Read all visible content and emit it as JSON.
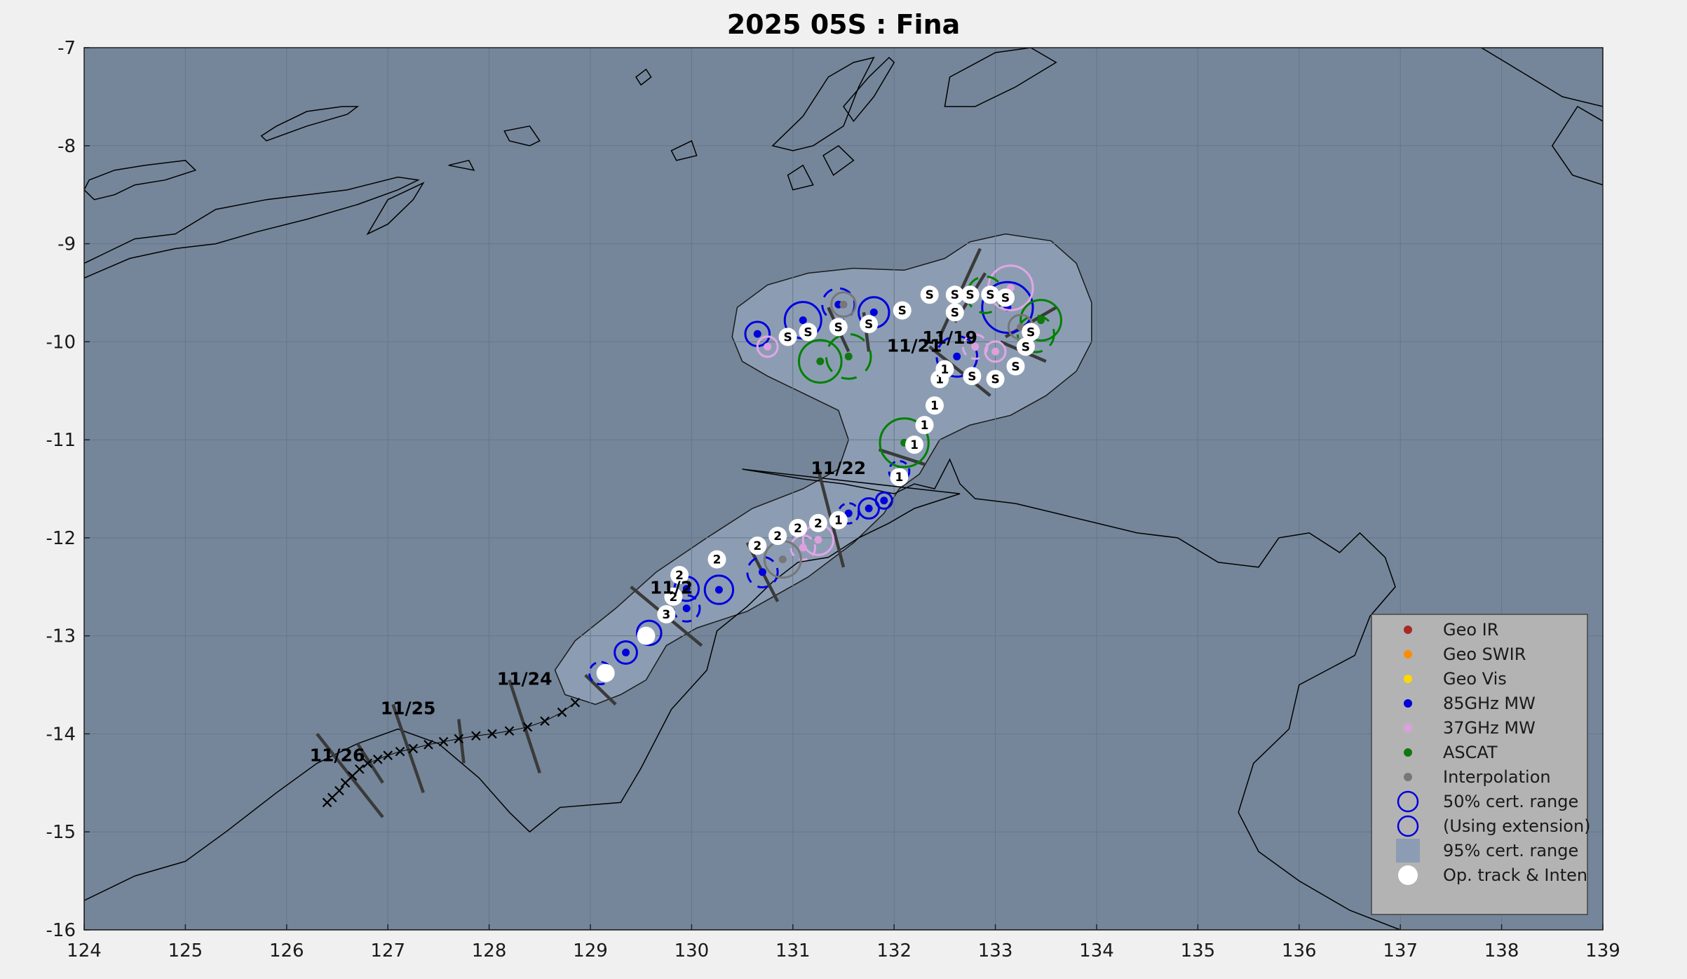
{
  "title": "2025  05S :  Fina",
  "map": {
    "x_range": [
      124,
      139
    ],
    "y_range": [
      -16,
      -7
    ],
    "x_ticks": [
      "124",
      "125",
      "126",
      "127",
      "128",
      "129",
      "130",
      "131",
      "132",
      "133",
      "134",
      "135",
      "136",
      "137",
      "138",
      "139"
    ],
    "y_ticks": [
      "-7",
      "-8",
      "-9",
      "-10",
      "-11",
      "-12",
      "-13",
      "-14",
      "-15",
      "-16"
    ],
    "grid": true,
    "colors": {
      "ocean": "#75869a",
      "land_line": "#000000",
      "cert95": "#8c9db3",
      "grid": "#66778a",
      "frame_bg": "#f0f0f0"
    }
  },
  "date_labels": [
    {
      "text": "11/19",
      "lon": 132.55,
      "lat": -10.02
    },
    {
      "text": "11/21",
      "lon": 132.2,
      "lat": -10.1
    },
    {
      "text": "11/22",
      "lon": 131.45,
      "lat": -11.35
    },
    {
      "text": "11/2",
      "lon": 129.8,
      "lat": -12.57
    },
    {
      "text": "11/24",
      "lon": 128.35,
      "lat": -13.5
    },
    {
      "text": "11/25",
      "lon": 127.2,
      "lat": -13.8
    },
    {
      "text": "11/26",
      "lon": 126.5,
      "lat": -14.28
    }
  ],
  "op_track": [
    {
      "lon": 129.15,
      "lat": -13.38,
      "label": ""
    },
    {
      "lon": 129.55,
      "lat": -13.0,
      "label": ""
    },
    {
      "lon": 129.75,
      "lat": -12.78,
      "label": "3"
    },
    {
      "lon": 129.82,
      "lat": -12.6,
      "label": "2"
    },
    {
      "lon": 129.88,
      "lat": -12.38,
      "label": "2"
    },
    {
      "lon": 130.25,
      "lat": -12.22,
      "label": "2"
    },
    {
      "lon": 130.65,
      "lat": -12.08,
      "label": "2"
    },
    {
      "lon": 130.85,
      "lat": -11.98,
      "label": "2"
    },
    {
      "lon": 131.05,
      "lat": -11.9,
      "label": "2"
    },
    {
      "lon": 131.25,
      "lat": -11.85,
      "label": "2"
    },
    {
      "lon": 131.45,
      "lat": -11.82,
      "label": "1"
    },
    {
      "lon": 132.05,
      "lat": -11.38,
      "label": "1"
    },
    {
      "lon": 132.2,
      "lat": -11.05,
      "label": "1"
    },
    {
      "lon": 132.3,
      "lat": -10.85,
      "label": "1"
    },
    {
      "lon": 132.4,
      "lat": -10.65,
      "label": "1"
    },
    {
      "lon": 132.45,
      "lat": -10.38,
      "label": "1"
    },
    {
      "lon": 132.5,
      "lat": -10.28,
      "label": "1"
    },
    {
      "lon": 132.77,
      "lat": -10.35,
      "label": "S"
    },
    {
      "lon": 133.0,
      "lat": -10.38,
      "label": "S"
    },
    {
      "lon": 133.2,
      "lat": -10.25,
      "label": "S"
    },
    {
      "lon": 133.3,
      "lat": -10.05,
      "label": "S"
    },
    {
      "lon": 133.35,
      "lat": -9.9,
      "label": "S"
    },
    {
      "lon": 133.1,
      "lat": -9.55,
      "label": "S"
    },
    {
      "lon": 132.95,
      "lat": -9.52,
      "label": "S"
    },
    {
      "lon": 132.75,
      "lat": -9.52,
      "label": "S"
    },
    {
      "lon": 132.6,
      "lat": -9.52,
      "label": "S"
    },
    {
      "lon": 132.6,
      "lat": -9.7,
      "label": "S"
    },
    {
      "lon": 132.35,
      "lat": -9.52,
      "label": "S"
    },
    {
      "lon": 132.08,
      "lat": -9.68,
      "label": "S"
    },
    {
      "lon": 131.75,
      "lat": -9.82,
      "label": "S"
    },
    {
      "lon": 131.45,
      "lat": -9.85,
      "label": "S"
    },
    {
      "lon": 131.15,
      "lat": -9.9,
      "label": "S"
    },
    {
      "lon": 130.95,
      "lat": -9.95,
      "label": "S"
    }
  ],
  "forecast_track": [
    {
      "lon": 128.85,
      "lat": -13.68
    },
    {
      "lon": 128.72,
      "lat": -13.78
    },
    {
      "lon": 128.55,
      "lat": -13.87
    },
    {
      "lon": 128.38,
      "lat": -13.93
    },
    {
      "lon": 128.2,
      "lat": -13.97
    },
    {
      "lon": 128.03,
      "lat": -14.0
    },
    {
      "lon": 127.87,
      "lat": -14.02
    },
    {
      "lon": 127.7,
      "lat": -14.05
    },
    {
      "lon": 127.55,
      "lat": -14.08
    },
    {
      "lon": 127.4,
      "lat": -14.11
    },
    {
      "lon": 127.25,
      "lat": -14.15
    },
    {
      "lon": 127.12,
      "lat": -14.18
    },
    {
      "lon": 127.0,
      "lat": -14.22
    },
    {
      "lon": 126.9,
      "lat": -14.26
    },
    {
      "lon": 126.8,
      "lat": -14.3
    },
    {
      "lon": 126.72,
      "lat": -14.36
    },
    {
      "lon": 126.65,
      "lat": -14.43
    },
    {
      "lon": 126.58,
      "lat": -14.5
    },
    {
      "lon": 126.52,
      "lat": -14.58
    },
    {
      "lon": 126.45,
      "lat": -14.65
    },
    {
      "lon": 126.4,
      "lat": -14.7
    }
  ],
  "fixes": [
    {
      "type": "85",
      "lon": 130.65,
      "lat": -9.92,
      "r": 0.12
    },
    {
      "type": "85",
      "lon": 131.1,
      "lat": -9.78,
      "r": 0.18
    },
    {
      "type": "85",
      "lon": 131.8,
      "lat": -9.7,
      "r": 0.15
    },
    {
      "type": "85",
      "lon": 133.12,
      "lat": -9.65,
      "r": 0.25
    },
    {
      "type": "85",
      "lon": 132.62,
      "lat": -10.15,
      "r": 0.2,
      "dashed": true
    },
    {
      "type": "85",
      "lon": 131.45,
      "lat": -9.62,
      "r": 0.16,
      "dashed": true
    },
    {
      "type": "85",
      "lon": 132.05,
      "lat": -11.32,
      "r": 0.1,
      "dashed": true
    },
    {
      "type": "85",
      "lon": 131.9,
      "lat": -11.62,
      "r": 0.08
    },
    {
      "type": "85",
      "lon": 131.75,
      "lat": -11.7,
      "r": 0.1
    },
    {
      "type": "85",
      "lon": 131.55,
      "lat": -11.75,
      "r": 0.1,
      "dashed": true
    },
    {
      "type": "85",
      "lon": 130.7,
      "lat": -12.35,
      "r": 0.15,
      "dashed": true
    },
    {
      "type": "85",
      "lon": 129.95,
      "lat": -12.52,
      "r": 0.12
    },
    {
      "type": "85",
      "lon": 130.27,
      "lat": -12.53,
      "r": 0.14
    },
    {
      "type": "85",
      "lon": 129.95,
      "lat": -12.72,
      "r": 0.13,
      "dashed": true
    },
    {
      "type": "85",
      "lon": 129.58,
      "lat": -12.97,
      "r": 0.12
    },
    {
      "type": "85",
      "lon": 129.35,
      "lat": -13.17,
      "r": 0.11
    },
    {
      "type": "85",
      "lon": 129.1,
      "lat": -13.38,
      "r": 0.11,
      "dashed": true
    },
    {
      "type": "37",
      "lon": 130.75,
      "lat": -10.05,
      "r": 0.1
    },
    {
      "type": "37",
      "lon": 133.15,
      "lat": -9.45,
      "r": 0.22
    },
    {
      "type": "37",
      "lon": 132.8,
      "lat": -10.05,
      "r": 0.12,
      "dashed": true
    },
    {
      "type": "37",
      "lon": 133.0,
      "lat": -10.1,
      "r": 0.1
    },
    {
      "type": "37",
      "lon": 131.25,
      "lat": -12.02,
      "r": 0.15
    },
    {
      "type": "37",
      "lon": 131.1,
      "lat": -12.1,
      "r": 0.12,
      "dashed": true
    },
    {
      "type": "AS",
      "lon": 131.27,
      "lat": -10.2,
      "r": 0.21
    },
    {
      "type": "AS",
      "lon": 131.55,
      "lat": -10.15,
      "r": 0.22,
      "dashed": true
    },
    {
      "type": "AS",
      "lon": 132.1,
      "lat": -11.03,
      "r": 0.24
    },
    {
      "type": "AS",
      "lon": 133.45,
      "lat": -9.78,
      "r": 0.2
    },
    {
      "type": "AS",
      "lon": 133.4,
      "lat": -9.92,
      "r": 0.18,
      "dashed": true
    },
    {
      "type": "AS",
      "lon": 132.9,
      "lat": -9.52,
      "r": 0.18,
      "dashed": true
    },
    {
      "type": "IN",
      "lon": 131.5,
      "lat": -9.62,
      "r": 0.12
    },
    {
      "type": "IN",
      "lon": 130.9,
      "lat": -12.22,
      "r": 0.18
    },
    {
      "type": "IN",
      "lon": 133.25,
      "lat": -9.85,
      "r": 0.12
    }
  ],
  "fix_colors": {
    "85": "#0000e0",
    "37": "#e1a6e6",
    "AS": "#008000",
    "IN": "#777777"
  },
  "fix_dot_colors": {
    "85": "#0000dd",
    "37": "#dda0dd",
    "AS": "#117711",
    "IN": "#777777"
  },
  "legend": {
    "items": [
      {
        "label": "Geo IR",
        "kind": "dot",
        "color": "#a52a2a"
      },
      {
        "label": "Geo SWIR",
        "kind": "dot",
        "color": "#ff8c00"
      },
      {
        "label": "Geo Vis",
        "kind": "dot",
        "color": "#ffd700"
      },
      {
        "label": "85GHz MW",
        "kind": "dot",
        "color": "#0000dd"
      },
      {
        "label": "37GHz MW",
        "kind": "dot",
        "color": "#dda0dd"
      },
      {
        "label": "ASCAT",
        "kind": "dot",
        "color": "#117711"
      },
      {
        "label": "Interpolation",
        "kind": "dot",
        "color": "#777777"
      },
      {
        "label": "50% cert. range",
        "kind": "ring",
        "color": "#0000dd"
      },
      {
        "label": "(Using extension)",
        "kind": "ring",
        "color": "#0000dd"
      },
      {
        "label": "95% cert. range",
        "kind": "square",
        "color": "#8c9db3"
      },
      {
        "label": "Op. track & Inten",
        "kind": "white",
        "color": "#ffffff"
      }
    ]
  }
}
